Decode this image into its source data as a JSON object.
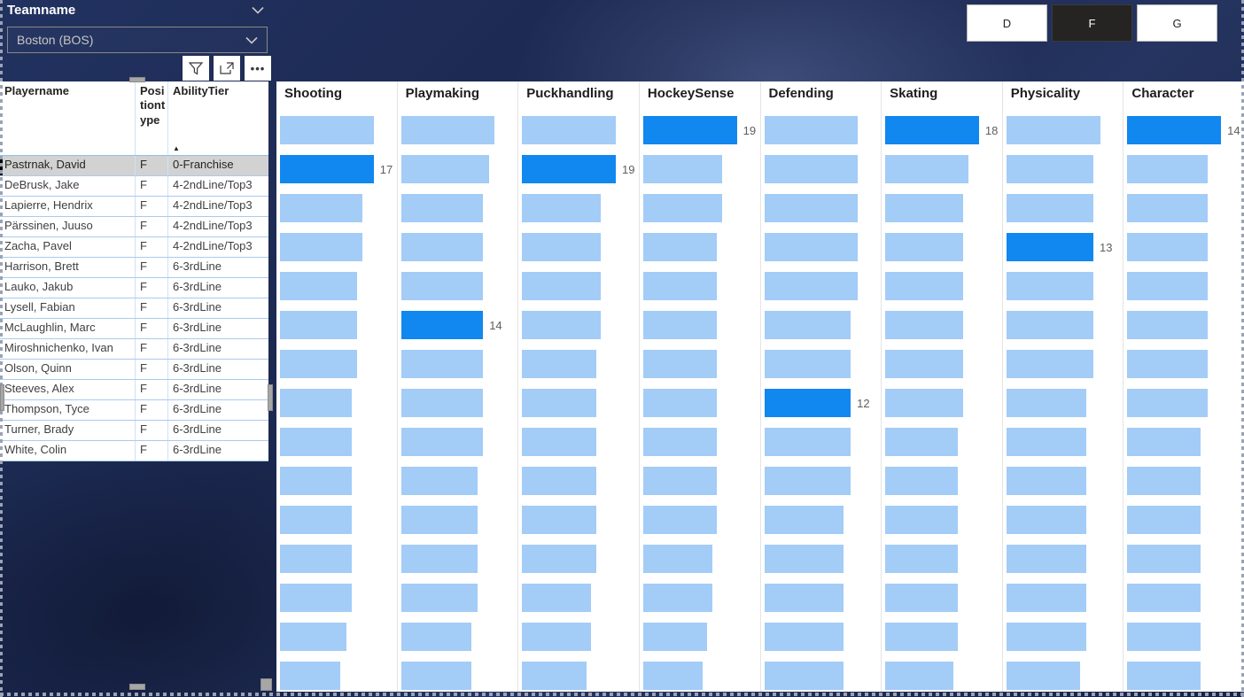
{
  "slicer": {
    "title": "Teamname",
    "value": "Boston (BOS)"
  },
  "visual_toolbar": {
    "icons": [
      "filter",
      "focus-mode",
      "more-options"
    ]
  },
  "position_buttons": [
    {
      "label": "D",
      "selected": false
    },
    {
      "label": "F",
      "selected": true
    },
    {
      "label": "G",
      "selected": false
    }
  ],
  "table": {
    "columns": [
      "Playername",
      "Positiontype",
      "AbilityTier"
    ],
    "sort": {
      "column": "AbilityTier",
      "direction": "ascending"
    },
    "rows": [
      {
        "player": "Pastrnak, David",
        "position": "F",
        "tier": "0-Franchise",
        "selected": true
      },
      {
        "player": "DeBrusk, Jake",
        "position": "F",
        "tier": "4-2ndLine/Top3",
        "selected": false
      },
      {
        "player": "Lapierre, Hendrix",
        "position": "F",
        "tier": "4-2ndLine/Top3",
        "selected": false
      },
      {
        "player": "Pärssinen, Juuso",
        "position": "F",
        "tier": "4-2ndLine/Top3",
        "selected": false
      },
      {
        "player": "Zacha, Pavel",
        "position": "F",
        "tier": "4-2ndLine/Top3",
        "selected": false
      },
      {
        "player": "Harrison, Brett",
        "position": "F",
        "tier": "6-3rdLine",
        "selected": false
      },
      {
        "player": "Lauko, Jakub",
        "position": "F",
        "tier": "6-3rdLine",
        "selected": false
      },
      {
        "player": "Lysell, Fabian",
        "position": "F",
        "tier": "6-3rdLine",
        "selected": false
      },
      {
        "player": "McLaughlin, Marc",
        "position": "F",
        "tier": "6-3rdLine",
        "selected": false
      },
      {
        "player": "Miroshnichenko, Ivan",
        "position": "F",
        "tier": "6-3rdLine",
        "selected": false
      },
      {
        "player": "Olson, Quinn",
        "position": "F",
        "tier": "6-3rdLine",
        "selected": false
      },
      {
        "player": "Steeves, Alex",
        "position": "F",
        "tier": "6-3rdLine",
        "selected": false
      },
      {
        "player": "Thompson, Tyce",
        "position": "F",
        "tier": "6-3rdLine",
        "selected": false
      },
      {
        "player": "Turner, Brady",
        "position": "F",
        "tier": "6-3rdLine",
        "selected": false
      },
      {
        "player": "White, Colin",
        "position": "F",
        "tier": "6-3rdLine",
        "selected": false
      }
    ]
  },
  "chart_data": {
    "type": "bar",
    "orientation": "horizontal",
    "sorted": "descending per attribute",
    "highlighted_player": "Pastrnak, David",
    "charts": [
      {
        "title": "Shooting",
        "values": [
          17,
          17,
          15,
          15,
          14,
          14,
          14,
          13,
          13,
          13,
          13,
          13,
          13,
          12,
          11
        ],
        "highlight_index": 1,
        "highlight_label": "17"
      },
      {
        "title": "Playmaking",
        "values": [
          16,
          15,
          14,
          14,
          14,
          14,
          14,
          14,
          14,
          13,
          13,
          13,
          13,
          12,
          12
        ],
        "highlight_index": 5,
        "highlight_label": "14"
      },
      {
        "title": "Puckhandling",
        "values": [
          19,
          19,
          16,
          16,
          16,
          16,
          15,
          15,
          15,
          15,
          15,
          15,
          14,
          14,
          13
        ],
        "highlight_index": 1,
        "highlight_label": "19"
      },
      {
        "title": "HockeySense",
        "values": [
          19,
          16,
          16,
          15,
          15,
          15,
          15,
          15,
          15,
          15,
          15,
          14,
          14,
          13,
          12
        ],
        "highlight_index": 0,
        "highlight_label": "19"
      },
      {
        "title": "Defending",
        "values": [
          13,
          13,
          13,
          13,
          13,
          12,
          12,
          12,
          12,
          12,
          11,
          11,
          11,
          11,
          11
        ],
        "highlight_index": 7,
        "highlight_label": "12"
      },
      {
        "title": "Skating",
        "values": [
          18,
          16,
          15,
          15,
          15,
          15,
          15,
          15,
          14,
          14,
          14,
          14,
          14,
          14,
          13
        ],
        "highlight_index": 0,
        "highlight_label": "18"
      },
      {
        "title": "Physicality",
        "values": [
          14,
          13,
          13,
          13,
          13,
          13,
          13,
          12,
          12,
          12,
          12,
          12,
          12,
          12,
          11
        ],
        "highlight_index": 3,
        "highlight_label": "13"
      },
      {
        "title": "Character",
        "values": [
          14,
          12,
          12,
          12,
          12,
          12,
          12,
          12,
          11,
          11,
          11,
          11,
          11,
          11,
          11
        ],
        "highlight_index": 0,
        "highlight_label": "14"
      }
    ]
  },
  "colors": {
    "accent": "#1187F0",
    "bar_light": "#A3CCF7",
    "value_label": "#605E5C",
    "selected_button_bg": "#252423",
    "table_border": "#94BEE8",
    "background": "#1B2950"
  }
}
